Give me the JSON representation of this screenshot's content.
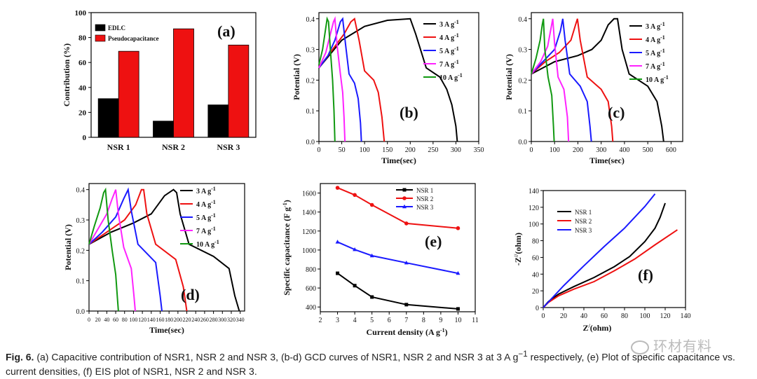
{
  "chart_data": [
    {
      "id": "a",
      "type": "bar",
      "panel_label": "(a)",
      "categories": [
        "NSR 1",
        "NSR 2",
        "NSR 3"
      ],
      "series": [
        {
          "name": "EDLC",
          "values": [
            31,
            13,
            26
          ],
          "color": "#000000"
        },
        {
          "name": "Pseudocapacitance",
          "values": [
            69,
            87,
            74
          ],
          "color": "#ee1111"
        }
      ],
      "ylabel": "Contribution (%)",
      "ylim": [
        0,
        100
      ],
      "yticks": [
        0,
        20,
        40,
        60,
        80,
        100
      ],
      "legend": "top-left"
    },
    {
      "id": "b",
      "type": "line",
      "panel_label": "(b)",
      "xlabel": "Time(sec)",
      "ylabel": "Potential (V)",
      "xlim": [
        0,
        350
      ],
      "ylim": [
        0.0,
        0.42
      ],
      "xticks": [
        0,
        50,
        100,
        150,
        200,
        250,
        300,
        350
      ],
      "yticks": [
        "0.0",
        "0.1",
        "0.2",
        "0.3",
        "0.4"
      ],
      "legend": "top-right",
      "series": [
        {
          "name": "3 A g",
          "sup": "-1",
          "color": "#000000",
          "x": [
            0,
            50,
            100,
            150,
            200,
            212,
            235,
            265,
            280,
            291,
            300,
            303
          ],
          "y": [
            0.24,
            0.33,
            0.375,
            0.395,
            0.4,
            0.35,
            0.24,
            0.21,
            0.17,
            0.12,
            0.05,
            0.0
          ]
        },
        {
          "name": "4 A g",
          "sup": "-1",
          "color": "#ee1111",
          "x": [
            0,
            30,
            55,
            70,
            78,
            88,
            100,
            120,
            130,
            138,
            143
          ],
          "y": [
            0.24,
            0.3,
            0.35,
            0.39,
            0.4,
            0.33,
            0.23,
            0.2,
            0.16,
            0.08,
            0.0
          ]
        },
        {
          "name": "5 A g",
          "sup": "-1",
          "color": "#1a1aff",
          "x": [
            0,
            20,
            35,
            47,
            52,
            58,
            66,
            78,
            86,
            91,
            93
          ],
          "y": [
            0.24,
            0.28,
            0.33,
            0.39,
            0.4,
            0.32,
            0.22,
            0.19,
            0.14,
            0.06,
            0.0
          ]
        },
        {
          "name": "7 A g",
          "sup": "-1",
          "color": "#ff22ff",
          "x": [
            0,
            15,
            25,
            32,
            35,
            40,
            47,
            52,
            55,
            57
          ],
          "y": [
            0.24,
            0.29,
            0.35,
            0.39,
            0.4,
            0.31,
            0.22,
            0.16,
            0.08,
            0.0
          ]
        },
        {
          "name": "10 A g",
          "sup": "-1",
          "color": "#119911",
          "x": [
            0,
            8,
            14,
            18,
            21,
            25,
            30,
            33,
            35
          ],
          "y": [
            0.25,
            0.3,
            0.36,
            0.4,
            0.39,
            0.3,
            0.2,
            0.1,
            0.0
          ]
        }
      ]
    },
    {
      "id": "c",
      "type": "line",
      "panel_label": "(c)",
      "xlabel": "Time(sec)",
      "ylabel": "Potential (V)",
      "xlim": [
        0,
        650
      ],
      "ylim": [
        0.0,
        0.42
      ],
      "xticks": [
        0,
        100,
        200,
        300,
        400,
        500,
        600
      ],
      "yticks": [
        "0.0",
        "0.1",
        "0.2",
        "0.3",
        "0.4"
      ],
      "legend": "top-right",
      "series": [
        {
          "name": "3 A g",
          "sup": "-1",
          "color": "#000000",
          "x": [
            0,
            100,
            200,
            260,
            300,
            330,
            355,
            370,
            390,
            420,
            500,
            540,
            560,
            568
          ],
          "y": [
            0.22,
            0.26,
            0.28,
            0.3,
            0.33,
            0.38,
            0.4,
            0.4,
            0.3,
            0.22,
            0.18,
            0.13,
            0.05,
            0.0
          ]
        },
        {
          "name": "4 A g",
          "sup": "-1",
          "color": "#ee1111",
          "x": [
            0,
            60,
            120,
            170,
            190,
            198,
            210,
            240,
            300,
            330,
            345,
            350
          ],
          "y": [
            0.22,
            0.26,
            0.29,
            0.33,
            0.38,
            0.4,
            0.33,
            0.21,
            0.17,
            0.13,
            0.05,
            0.0
          ]
        },
        {
          "name": "5 A g",
          "sup": "-1",
          "color": "#1a1aff",
          "x": [
            0,
            50,
            100,
            125,
            135,
            145,
            165,
            210,
            240,
            252,
            258
          ],
          "y": [
            0.22,
            0.26,
            0.3,
            0.36,
            0.4,
            0.33,
            0.22,
            0.18,
            0.13,
            0.05,
            0.0
          ]
        },
        {
          "name": "7 A g",
          "sup": "-1",
          "color": "#ff22ff",
          "x": [
            0,
            40,
            70,
            85,
            92,
            100,
            115,
            140,
            155,
            160
          ],
          "y": [
            0.22,
            0.26,
            0.31,
            0.37,
            0.4,
            0.32,
            0.21,
            0.17,
            0.08,
            0.0
          ]
        },
        {
          "name": "10 A g",
          "sup": "-1",
          "color": "#119911",
          "x": [
            0,
            20,
            38,
            47,
            52,
            58,
            72,
            88,
            95,
            98
          ],
          "y": [
            0.22,
            0.27,
            0.33,
            0.38,
            0.4,
            0.3,
            0.21,
            0.15,
            0.05,
            0.0
          ]
        }
      ]
    },
    {
      "id": "d",
      "type": "line",
      "panel_label": "(d)",
      "xlabel": "Time(sec)",
      "ylabel": "Potential (V)",
      "xlim": [
        0,
        350
      ],
      "ylim": [
        0.0,
        0.42
      ],
      "xticks": [
        0,
        20,
        40,
        60,
        80,
        100,
        120,
        140,
        160,
        180,
        200,
        220,
        240,
        260,
        280,
        300,
        320,
        340
      ],
      "yticks": [
        "0.0",
        "0.1",
        "0.2",
        "0.3",
        "0.4"
      ],
      "legend": "top-right",
      "series": [
        {
          "name": "3 A g",
          "sup": "-1",
          "color": "#000000",
          "x": [
            0,
            50,
            100,
            140,
            170,
            190,
            197,
            205,
            225,
            280,
            315,
            328,
            338
          ],
          "y": [
            0.22,
            0.26,
            0.29,
            0.32,
            0.38,
            0.4,
            0.39,
            0.32,
            0.22,
            0.18,
            0.14,
            0.05,
            0.0
          ]
        },
        {
          "name": "4 A g",
          "sup": "-1",
          "color": "#ee1111",
          "x": [
            0,
            40,
            80,
            105,
            118,
            123,
            130,
            150,
            195,
            212,
            220
          ],
          "y": [
            0.22,
            0.26,
            0.3,
            0.35,
            0.4,
            0.4,
            0.32,
            0.22,
            0.17,
            0.08,
            0.0
          ]
        },
        {
          "name": "5 A g",
          "sup": "-1",
          "color": "#1a1aff",
          "x": [
            0,
            30,
            60,
            78,
            88,
            95,
            110,
            150,
            160,
            164
          ],
          "y": [
            0.22,
            0.26,
            0.31,
            0.37,
            0.4,
            0.33,
            0.22,
            0.16,
            0.05,
            0.0
          ]
        },
        {
          "name": "7 A g",
          "sup": "-1",
          "color": "#ff22ff",
          "x": [
            0,
            20,
            40,
            52,
            60,
            66,
            78,
            95,
            101,
            104
          ],
          "y": [
            0.22,
            0.27,
            0.32,
            0.37,
            0.4,
            0.32,
            0.21,
            0.14,
            0.05,
            0.0
          ]
        },
        {
          "name": "10 A g",
          "sup": "-1",
          "color": "#119911",
          "x": [
            0,
            12,
            25,
            33,
            37,
            43,
            52,
            60,
            64,
            66
          ],
          "y": [
            0.22,
            0.28,
            0.34,
            0.39,
            0.4,
            0.3,
            0.2,
            0.12,
            0.04,
            0.0
          ]
        }
      ]
    },
    {
      "id": "e",
      "type": "line",
      "panel_label": "(e)",
      "xlabel": "Current density (A g",
      "xlabel_sup": "-1",
      "xlabel_end": ")",
      "ylabel": "Specific capacitance (F g",
      "ylabel_sup": "-1",
      "ylabel_end": ")",
      "xlim": [
        2,
        11
      ],
      "ylim": [
        350,
        1700
      ],
      "xticks": [
        2,
        3,
        4,
        5,
        6,
        7,
        8,
        9,
        10,
        11
      ],
      "yticks": [
        400,
        600,
        800,
        1000,
        1200,
        1400,
        1600
      ],
      "legend": "top-right",
      "series": [
        {
          "name": "NSR 1",
          "color": "#000000",
          "marker": "square",
          "x": [
            3,
            4,
            5,
            7,
            10
          ],
          "y": [
            755,
            625,
            505,
            425,
            380
          ]
        },
        {
          "name": "NSR 2",
          "color": "#ee1111",
          "marker": "circle",
          "x": [
            3,
            4,
            5,
            7,
            10
          ],
          "y": [
            1655,
            1580,
            1475,
            1280,
            1230
          ]
        },
        {
          "name": "NSR 3",
          "color": "#1a1aff",
          "marker": "triangle",
          "x": [
            3,
            4,
            5,
            7,
            10
          ],
          "y": [
            1085,
            1005,
            940,
            865,
            755
          ]
        }
      ]
    },
    {
      "id": "f",
      "type": "line",
      "panel_label": "(f)",
      "xlabel": "Z",
      "xlabel_sup": "/",
      "xlabel_end": "(ohm)",
      "ylabel": "-Z",
      "ylabel_sup": "//",
      "ylabel_end": "(ohm)",
      "xlim": [
        0,
        140
      ],
      "ylim": [
        0,
        140
      ],
      "xticks": [
        0,
        20,
        40,
        60,
        80,
        100,
        120,
        140
      ],
      "yticks": [
        0,
        20,
        40,
        60,
        80,
        100,
        120,
        140
      ],
      "legend": "top-left",
      "series": [
        {
          "name": "NSR 1",
          "color": "#000000",
          "x": [
            0,
            5,
            15,
            30,
            50,
            70,
            85,
            100,
            110,
            115,
            120
          ],
          "y": [
            0,
            7,
            16,
            25,
            36,
            49,
            61,
            79,
            95,
            108,
            125
          ]
        },
        {
          "name": "NSR 2",
          "color": "#ee1111",
          "x": [
            0,
            5,
            15,
            30,
            50,
            70,
            90,
            110,
            132
          ],
          "y": [
            0,
            6,
            14,
            22,
            31,
            44,
            58,
            75,
            93
          ]
        },
        {
          "name": "NSR 3",
          "color": "#1a1aff",
          "x": [
            0,
            10,
            20,
            40,
            60,
            80,
            100,
            110
          ],
          "y": [
            0,
            13,
            26,
            50,
            73,
            95,
            121,
            136
          ]
        }
      ]
    }
  ],
  "caption": {
    "label": "Fig. 6.",
    "text1": "(a) Capacitive contribution of NSR1, NSR 2 and NSR 3, (b-d) GCD curves of NSR1, NSR 2 and NSR 3 at 3 A g",
    "sup": "−1",
    "text2": " respectively, (e) Plot of specific capacitance vs. current densities, (f) EIS plot of NSR1, NSR 2 and NSR 3."
  },
  "watermark": "环材有料"
}
